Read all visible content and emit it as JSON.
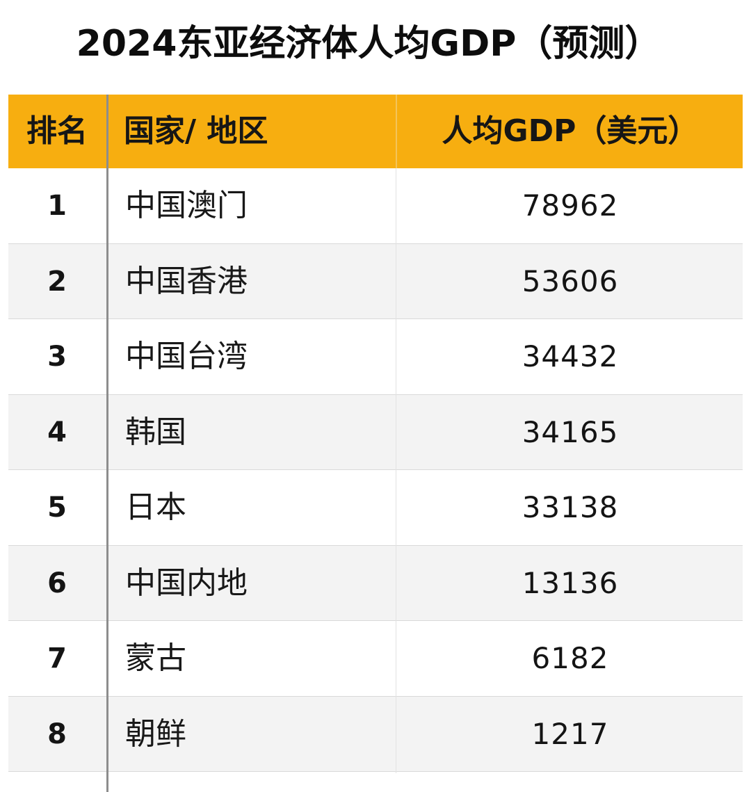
{
  "title": "2024东亚经济体人均GDP（预测）",
  "colors": {
    "header_bg": "#f7ae10",
    "row_alt_bg": "#f3f3f3",
    "text": "#111111"
  },
  "table": {
    "headers": {
      "rank": "排名",
      "name": "国家/ 地区",
      "gdp": "人均GDP（美元）"
    },
    "rows": [
      {
        "rank": "1",
        "name": "中国澳门",
        "gdp": "78962"
      },
      {
        "rank": "2",
        "name": "中国香港",
        "gdp": "53606"
      },
      {
        "rank": "3",
        "name": "中国台湾",
        "gdp": "34432"
      },
      {
        "rank": "4",
        "name": "韩国",
        "gdp": "34165"
      },
      {
        "rank": "5",
        "name": "日本",
        "gdp": "33138"
      },
      {
        "rank": "6",
        "name": "中国内地",
        "gdp": "13136"
      },
      {
        "rank": "7",
        "name": "蒙古",
        "gdp": "6182"
      },
      {
        "rank": "8",
        "name": "朝鲜",
        "gdp": "1217"
      }
    ]
  }
}
